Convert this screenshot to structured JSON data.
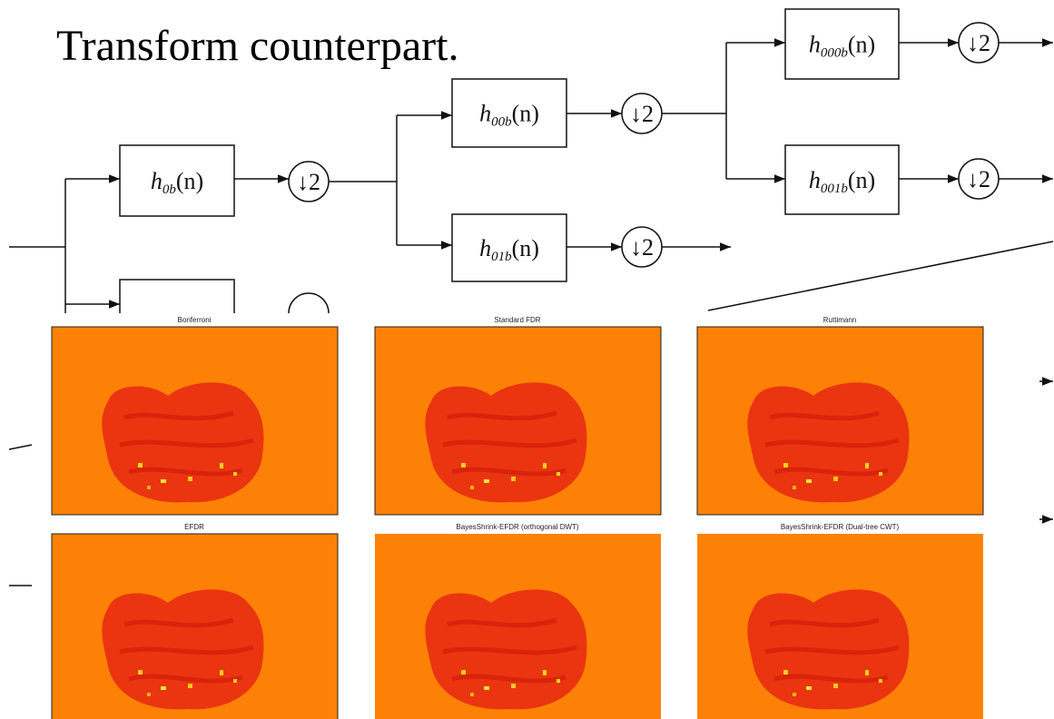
{
  "slide": {
    "heading": "Transform counterpart."
  },
  "diagram": {
    "filters": [
      {
        "base": "h",
        "sub": "0b",
        "arg": "(n)"
      },
      {
        "base": "h",
        "sub": "00b",
        "arg": "(n)"
      },
      {
        "base": "h",
        "sub": "01b",
        "arg": "(n)"
      },
      {
        "base": "h",
        "sub": "000b",
        "arg": "(n)"
      },
      {
        "base": "h",
        "sub": "001b",
        "arg": "(n)"
      }
    ],
    "downsamplers": [
      "↓2",
      "↓2",
      "↓2",
      "↓2",
      "↓2"
    ]
  },
  "panels": [
    {
      "title": "Bonferroni"
    },
    {
      "title": "Standard FDR"
    },
    {
      "title": "Ruttimann"
    },
    {
      "title": "EFDR"
    },
    {
      "title": "BayesShrink-EFDR (orthogonal DWT)"
    },
    {
      "title": "BayesShrink-EFDR (Dual-tree CWT)"
    }
  ]
}
